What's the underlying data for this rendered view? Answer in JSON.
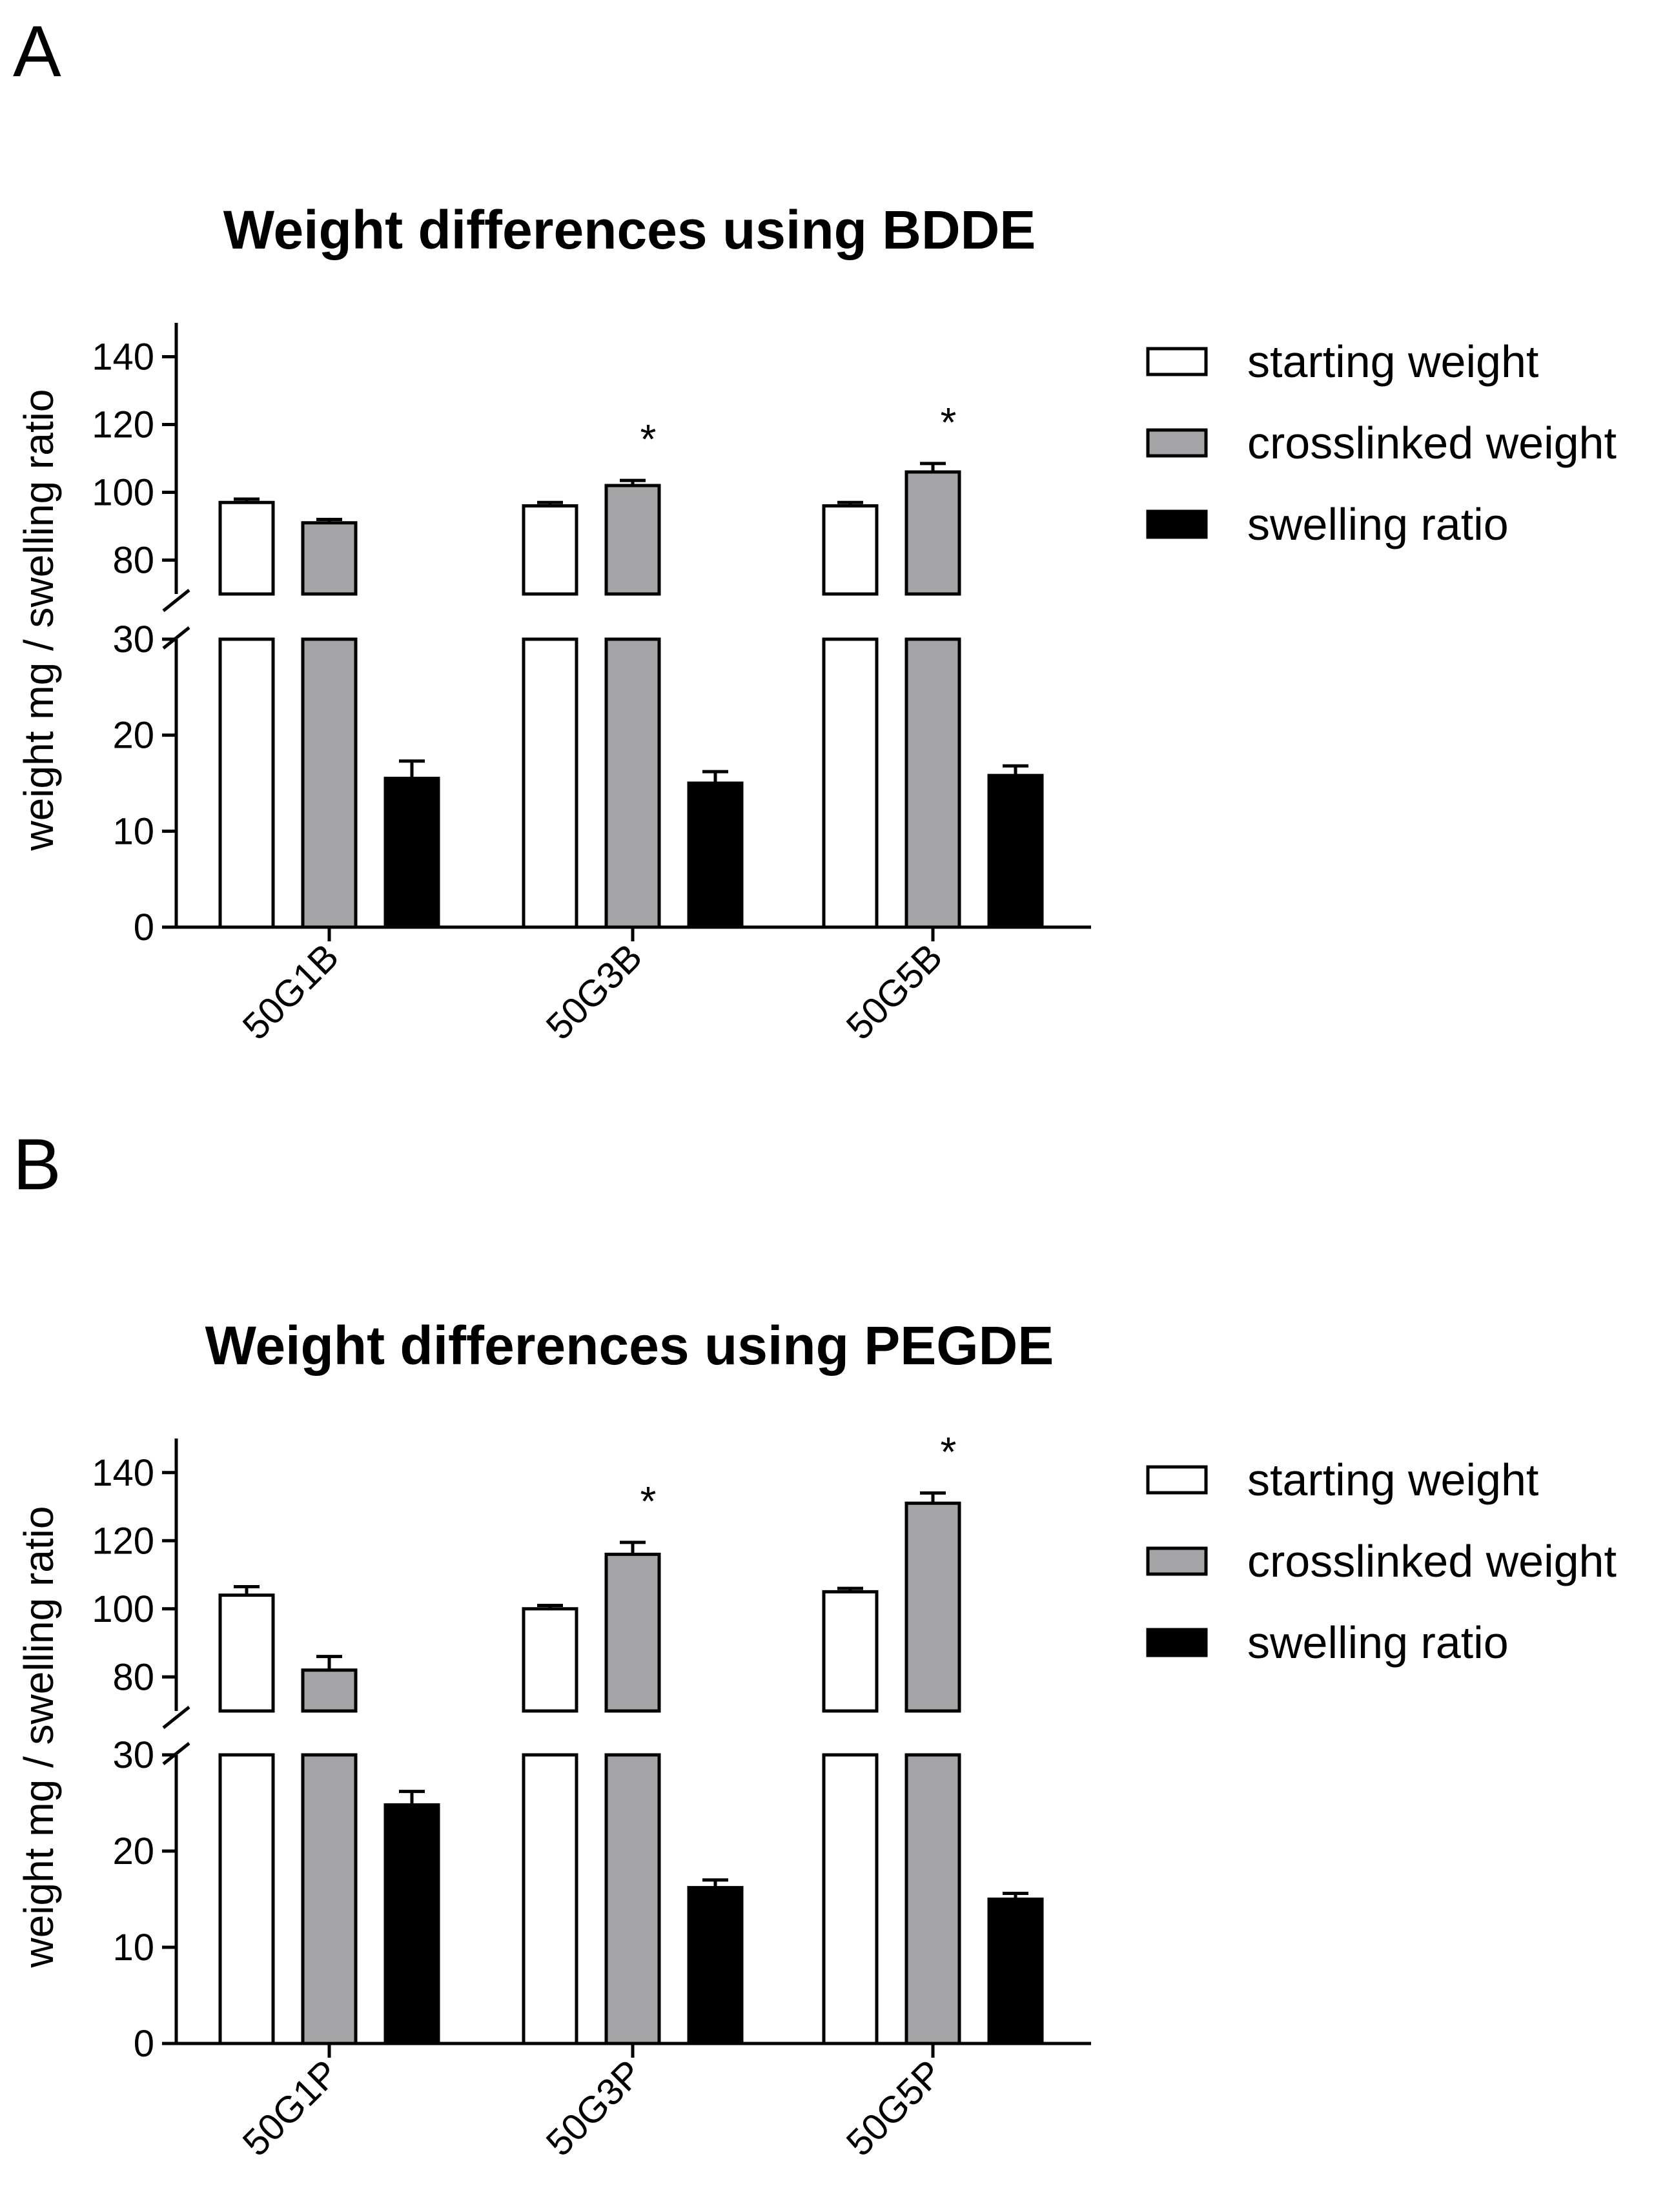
{
  "figure": {
    "panel_labels": [
      "A",
      "B"
    ]
  },
  "chart_data": [
    {
      "type": "bar",
      "panel": "A",
      "title": "Weight differences using BDDE",
      "xlabel": "",
      "ylabel": "weight mg / swelling ratio",
      "categories": [
        "50G1B",
        "50G3B",
        "50G5B"
      ],
      "axis_break": {
        "lower": [
          0,
          30
        ],
        "upper": [
          70,
          150
        ]
      },
      "yticks_lower": [
        0,
        10,
        20,
        30
      ],
      "yticks_upper": [
        80,
        100,
        120,
        140
      ],
      "ytick_labels_lower": [
        "0",
        "10",
        "20",
        "30"
      ],
      "ytick_labels_upper": [
        "80",
        "100",
        "120",
        "140"
      ],
      "legend_position": "right",
      "series": [
        {
          "name": "starting weight",
          "values": [
            97,
            96,
            96
          ],
          "errors": [
            1.0,
            1.0,
            1.0
          ],
          "fill": "#ffffff"
        },
        {
          "name": "crosslinked weight",
          "values": [
            91,
            102,
            106
          ],
          "errors": [
            1.0,
            1.5,
            2.5
          ],
          "fill": "#a5a5a7"
        },
        {
          "name": "swelling ratio",
          "values": [
            15.5,
            15.0,
            15.8
          ],
          "errors": [
            1.8,
            1.2,
            1.0
          ],
          "fill": "#000000"
        }
      ],
      "annotations": [
        {
          "category": "50G3B",
          "series": "crosslinked weight",
          "text": "*"
        },
        {
          "category": "50G5B",
          "series": "crosslinked weight",
          "text": "*"
        }
      ]
    },
    {
      "type": "bar",
      "panel": "B",
      "title": "Weight differences using PEGDE",
      "xlabel": "",
      "ylabel": "weight mg / swelling ratio",
      "categories": [
        "50G1P",
        "50G3P",
        "50G5P"
      ],
      "axis_break": {
        "lower": [
          0,
          30
        ],
        "upper": [
          70,
          150
        ]
      },
      "yticks_lower": [
        0,
        10,
        20,
        30
      ],
      "yticks_upper": [
        80,
        100,
        120,
        140
      ],
      "ytick_labels_lower": [
        "0",
        "10",
        "20",
        "30"
      ],
      "ytick_labels_upper": [
        "80",
        "100",
        "120",
        "140"
      ],
      "legend_position": "right",
      "series": [
        {
          "name": "starting weight",
          "values": [
            104,
            100,
            105
          ],
          "errors": [
            2.5,
            1.0,
            1.0
          ],
          "fill": "#ffffff"
        },
        {
          "name": "crosslinked weight",
          "values": [
            82,
            116,
            131
          ],
          "errors": [
            4.0,
            3.5,
            3.0
          ],
          "fill": "#a5a5a7"
        },
        {
          "name": "swelling ratio",
          "values": [
            24.8,
            16.2,
            15.0
          ],
          "errors": [
            1.4,
            0.8,
            0.6
          ],
          "fill": "#000000"
        }
      ],
      "annotations": [
        {
          "category": "50G3P",
          "series": "crosslinked weight",
          "text": "*"
        },
        {
          "category": "50G5P",
          "series": "crosslinked weight",
          "text": "*"
        }
      ]
    }
  ]
}
